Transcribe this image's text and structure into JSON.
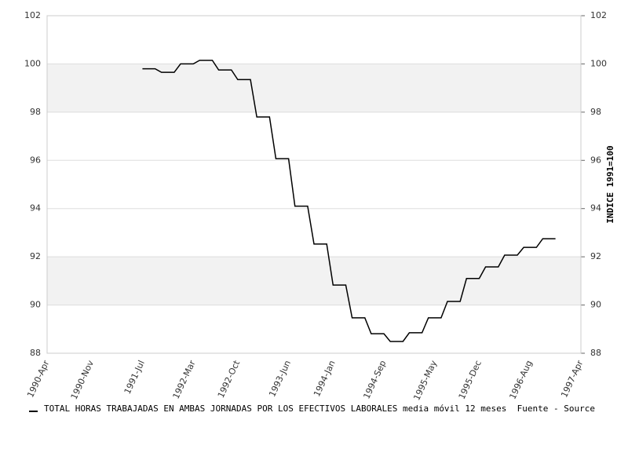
{
  "chart_data": {
    "type": "line",
    "categories": [
      "1990-Apr",
      null,
      null,
      null,
      null,
      null,
      null,
      "1990-Nov",
      null,
      null,
      null,
      null,
      null,
      null,
      null,
      "1991-Jul",
      null,
      null,
      null,
      null,
      null,
      null,
      null,
      "1992-Mar",
      null,
      null,
      null,
      null,
      null,
      null,
      "1992-Oct",
      null,
      null,
      null,
      null,
      null,
      null,
      null,
      "1993-Jun",
      null,
      null,
      null,
      null,
      null,
      null,
      "1994-Jan",
      null,
      null,
      null,
      null,
      null,
      null,
      null,
      "1994-Sep",
      null,
      null,
      null,
      null,
      null,
      null,
      null,
      "1995-May",
      null,
      null,
      null,
      null,
      null,
      null,
      "1995-Dec",
      null,
      null,
      null,
      null,
      null,
      null,
      null,
      "1996-Aug",
      null,
      null,
      null,
      null,
      null,
      null,
      null,
      "1997-Apr"
    ],
    "series": [
      {
        "name": "TOTAL HORAS TRABAJADAS EN AMBAS JORNADAS POR LOS EFECTIVOS LABORALES media móvil 12 meses  Fuente - Source",
        "color": "#000000",
        "values": [
          null,
          null,
          null,
          null,
          null,
          null,
          null,
          null,
          null,
          null,
          null,
          null,
          null,
          null,
          null,
          99.8,
          99.8,
          99.8,
          99.65,
          99.65,
          99.65,
          100.0,
          100.0,
          100.0,
          100.15,
          100.15,
          100.15,
          99.75,
          99.75,
          99.75,
          99.35,
          99.35,
          99.35,
          97.8,
          97.8,
          97.8,
          96.07,
          96.07,
          96.07,
          94.1,
          94.1,
          94.1,
          92.53,
          92.53,
          92.53,
          90.83,
          90.83,
          90.83,
          89.47,
          89.47,
          89.47,
          88.81,
          88.81,
          88.81,
          88.49,
          88.49,
          88.49,
          88.85,
          88.85,
          88.85,
          89.47,
          89.47,
          89.47,
          90.15,
          90.15,
          90.15,
          91.1,
          91.1,
          91.1,
          91.58,
          91.58,
          91.58,
          92.07,
          92.07,
          92.07,
          92.39,
          92.39,
          92.39,
          92.75,
          92.75,
          92.75,
          null,
          null,
          null,
          null
        ]
      }
    ],
    "ylim": [
      88,
      102
    ],
    "yticks": [
      88,
      90,
      92,
      94,
      96,
      98,
      100,
      102
    ],
    "y2lim": [
      88,
      102
    ],
    "y2ticks": [
      88,
      90,
      92,
      94,
      96,
      98,
      100,
      102
    ],
    "y2label": "INDICE 1991=100",
    "grid": true
  }
}
